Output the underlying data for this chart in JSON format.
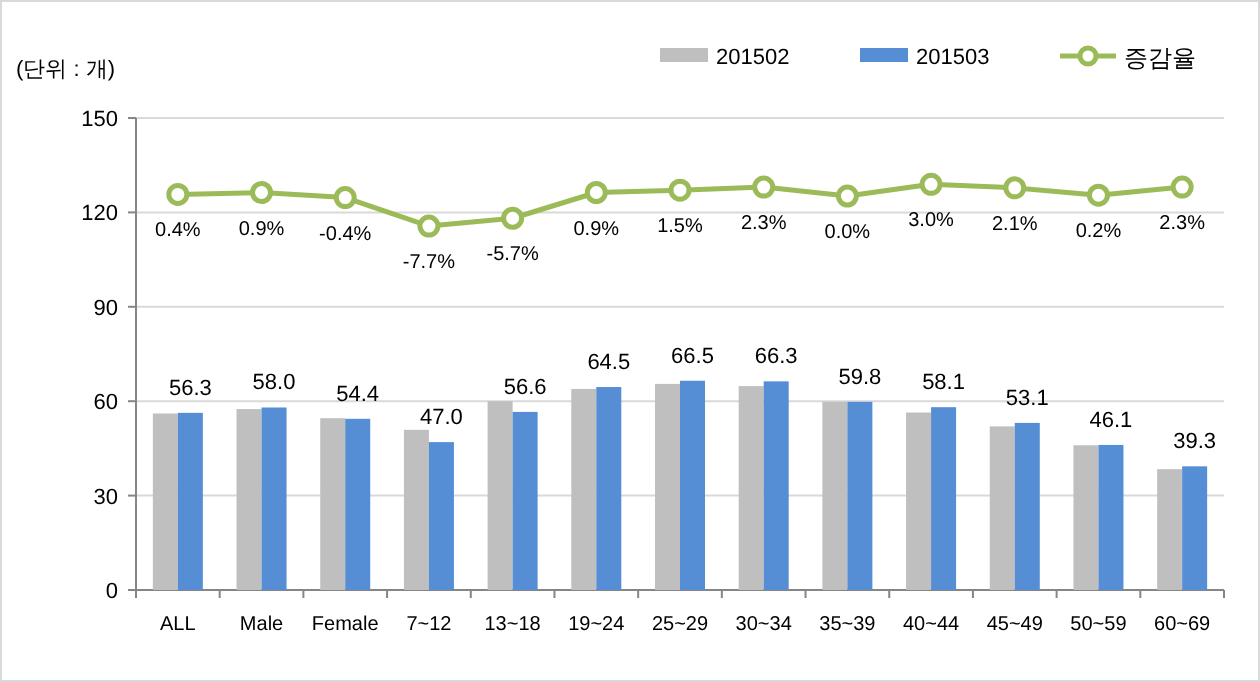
{
  "chart_data": {
    "type": "bar",
    "ylabel": "(단위 : 개)",
    "categories": [
      "ALL",
      "Male",
      "Female",
      "7~12",
      "13~18",
      "19~24",
      "25~29",
      "30~34",
      "35~39",
      "40~44",
      "45~49",
      "50~59",
      "60~69"
    ],
    "series": [
      {
        "name": "201502",
        "color": "#bfbfbf",
        "values": [
          56.1,
          57.5,
          54.6,
          50.9,
          60.0,
          63.9,
          65.5,
          64.8,
          59.8,
          56.4,
          52.0,
          46.0,
          38.4
        ]
      },
      {
        "name": "201503",
        "color": "#558ed5",
        "values": [
          56.3,
          58.0,
          54.4,
          47.0,
          56.6,
          64.5,
          66.5,
          66.3,
          59.8,
          58.1,
          53.1,
          46.1,
          39.3
        ],
        "value_labels": [
          "56.3",
          "58.0",
          "54.4",
          "47.0",
          "56.6",
          "64.5",
          "66.5",
          "66.3",
          "59.8",
          "58.1",
          "53.1",
          "46.1",
          "39.3"
        ]
      },
      {
        "name": "증감율",
        "type": "line",
        "axis": "y2",
        "color": "#9bbb59",
        "marker": "circle",
        "values": [
          0.4,
          0.9,
          -0.4,
          -7.7,
          -5.7,
          0.9,
          1.5,
          2.3,
          0.0,
          3.0,
          2.1,
          0.2,
          2.3
        ],
        "value_labels": [
          "0.4%",
          "0.9%",
          "-0.4%",
          "-7.7%",
          "-5.7%",
          "0.9%",
          "1.5%",
          "2.3%",
          "0.0%",
          "3.0%",
          "2.1%",
          "0.2%",
          "2.3%"
        ]
      }
    ],
    "ylim": [
      0,
      150
    ],
    "yticks": [
      0,
      30,
      60,
      90,
      120,
      150
    ],
    "y2lim": [
      -101,
      20
    ],
    "grid": "y",
    "legend": "top right"
  }
}
